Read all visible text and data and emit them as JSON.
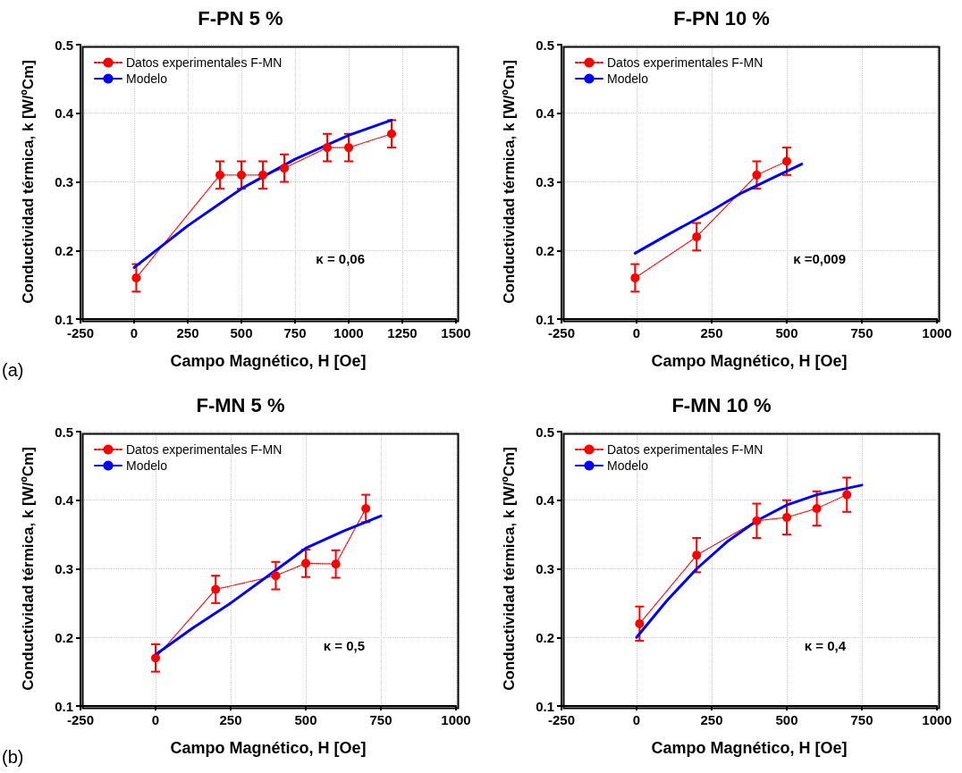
{
  "chart_data": [
    {
      "type": "line",
      "title": "F-PN 5 %",
      "xlabel": "Campo Magnético, H [Oe]",
      "ylabel": "Conductividad térmica, k [W/ºCm]",
      "annotations": [
        "κ = 0,06",
        "(a)"
      ],
      "xlim": [
        -250,
        1500
      ],
      "xticks": [
        -250,
        0,
        250,
        500,
        750,
        1000,
        1250,
        1500
      ],
      "ylim": [
        0.1,
        0.5
      ],
      "yticks": [
        0.1,
        0.2,
        0.3,
        0.4,
        0.5
      ],
      "grid": true,
      "legend": "top left",
      "series": [
        {
          "name": "Datos experimentales F-MN",
          "color": "#ff0000",
          "marker": "circle",
          "line_style": "dotted",
          "x": [
            10,
            400,
            500,
            600,
            700,
            900,
            1000,
            1200
          ],
          "values": [
            0.16,
            0.31,
            0.31,
            0.31,
            0.32,
            0.35,
            0.35,
            0.37
          ],
          "errors": [
            0.02,
            0.02,
            0.02,
            0.02,
            0.02,
            0.02,
            0.02,
            0.02
          ]
        },
        {
          "name": "Modelo",
          "color": "#0000ff",
          "marker": "none",
          "line_style": "solid",
          "x": [
            0,
            250,
            500,
            750,
            1000,
            1200
          ],
          "values": [
            0.175,
            0.236,
            0.29,
            0.333,
            0.368,
            0.39
          ]
        }
      ]
    },
    {
      "type": "line",
      "title": "F-PN 10 %",
      "xlabel": "Campo Magnético, H [Oe]",
      "ylabel": "Conductividad térmica, k [W/ºCm]",
      "annotations": [
        "κ =0,009"
      ],
      "xlim": [
        -250,
        1000
      ],
      "xticks": [
        -250,
        0,
        250,
        500,
        750,
        1000
      ],
      "ylim": [
        0.1,
        0.5
      ],
      "yticks": [
        0.1,
        0.2,
        0.3,
        0.4,
        0.5
      ],
      "grid": true,
      "legend": "top left",
      "series": [
        {
          "name": "Datos experimentales F-MN",
          "color": "#ff0000",
          "marker": "circle",
          "line_style": "dotted",
          "x": [
            -5,
            200,
            400,
            500
          ],
          "values": [
            0.16,
            0.22,
            0.31,
            0.33
          ],
          "errors": [
            0.02,
            0.02,
            0.02,
            0.02
          ]
        },
        {
          "name": "Modelo",
          "color": "#0000ff",
          "marker": "none",
          "line_style": "solid",
          "x": [
            -5,
            100,
            250,
            350,
            450,
            550
          ],
          "values": [
            0.196,
            0.222,
            0.258,
            0.284,
            0.305,
            0.326
          ]
        }
      ]
    },
    {
      "type": "line",
      "title": "F-MN 5 %",
      "xlabel": "Campo Magnético, H [Oe]",
      "ylabel": "Conductividad térmica, k [W/ºCm]",
      "annotations": [
        "κ = 0,5",
        "(b)"
      ],
      "xlim": [
        -250,
        1000
      ],
      "xticks": [
        -250,
        0,
        250,
        500,
        750,
        1000
      ],
      "ylim": [
        0.1,
        0.5
      ],
      "yticks": [
        0.1,
        0.2,
        0.3,
        0.4,
        0.5
      ],
      "grid": true,
      "legend": "top left",
      "series": [
        {
          "name": "Datos experimentales F-MN",
          "color": "#ff0000",
          "marker": "circle",
          "line_style": "dotted",
          "x": [
            0,
            200,
            400,
            500,
            600,
            700
          ],
          "values": [
            0.17,
            0.27,
            0.29,
            0.308,
            0.307,
            0.388
          ],
          "errors": [
            0.02,
            0.02,
            0.02,
            0.02,
            0.02,
            0.02
          ]
        },
        {
          "name": "Modelo",
          "color": "#0000ff",
          "marker": "none",
          "line_style": "solid",
          "x": [
            0,
            125,
            250,
            375,
            500,
            625,
            750
          ],
          "values": [
            0.175,
            0.214,
            0.25,
            0.29,
            0.33,
            0.355,
            0.377
          ]
        }
      ]
    },
    {
      "type": "line",
      "title": "F-MN 10 %",
      "xlabel": "Campo Magnético, H [Oe]",
      "ylabel": "Conductividad térmica, k [W/ºCm]",
      "annotations": [
        "κ = 0,4"
      ],
      "xlim": [
        -250,
        1000
      ],
      "xticks": [
        -250,
        0,
        250,
        500,
        750,
        1000
      ],
      "ylim": [
        0.1,
        0.5
      ],
      "yticks": [
        0.1,
        0.2,
        0.3,
        0.4,
        0.5
      ],
      "grid": true,
      "legend": "top left",
      "series": [
        {
          "name": "Datos experimentales F-MN",
          "color": "#ff0000",
          "marker": "circle",
          "line_style": "dotted",
          "x": [
            10,
            200,
            400,
            500,
            600,
            700
          ],
          "values": [
            0.22,
            0.32,
            0.37,
            0.375,
            0.388,
            0.408
          ],
          "errors": [
            0.025,
            0.025,
            0.025,
            0.025,
            0.025,
            0.025
          ]
        },
        {
          "name": "Modelo",
          "color": "#0000ff",
          "marker": "none",
          "line_style": "solid",
          "x": [
            0,
            100,
            200,
            300,
            400,
            500,
            600,
            750
          ],
          "values": [
            0.2,
            0.253,
            0.3,
            0.339,
            0.37,
            0.393,
            0.408,
            0.422
          ]
        }
      ]
    }
  ]
}
